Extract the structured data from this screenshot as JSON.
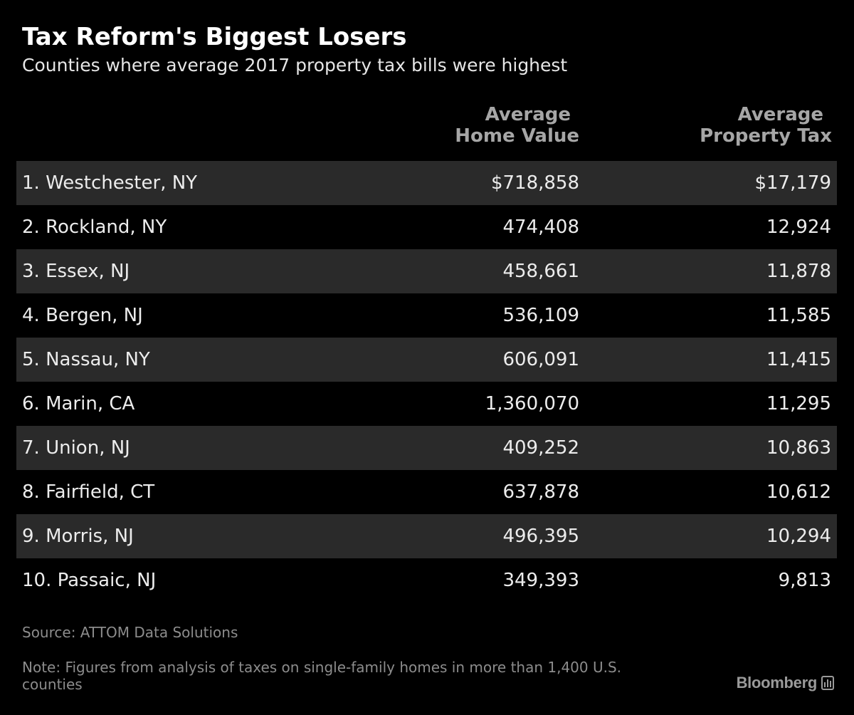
{
  "title": "Tax Reform's Biggest Losers",
  "subtitle": "Counties where average 2017 property tax bills were highest",
  "columns": {
    "home_value": {
      "line1": "Average",
      "line2": "Home Value"
    },
    "property_tax": {
      "line1": "Average",
      "line2": "Property Tax"
    }
  },
  "rows": [
    {
      "county": "1. Westchester, NY",
      "home_value": "$718,858",
      "property_tax": "$17,179"
    },
    {
      "county": "2. Rockland, NY",
      "home_value": "474,408",
      "property_tax": "12,924"
    },
    {
      "county": "3. Essex, NJ",
      "home_value": "458,661",
      "property_tax": "11,878"
    },
    {
      "county": "4. Bergen, NJ",
      "home_value": "536,109",
      "property_tax": "11,585"
    },
    {
      "county": "5. Nassau, NY",
      "home_value": "606,091",
      "property_tax": "11,415"
    },
    {
      "county": "6. Marin, CA",
      "home_value": "1,360,070",
      "property_tax": "11,295"
    },
    {
      "county": "7. Union, NJ",
      "home_value": "409,252",
      "property_tax": "10,863"
    },
    {
      "county": "8. Fairfield, CT",
      "home_value": "637,878",
      "property_tax": "10,612"
    },
    {
      "county": "9. Morris, NJ",
      "home_value": "496,395",
      "property_tax": "10,294"
    },
    {
      "county": "10. Passaic, NJ",
      "home_value": "349,393",
      "property_tax": "9,813"
    }
  ],
  "source": "Source: ATTOM Data Solutions",
  "note": "Note: Figures from analysis of taxes on single-family homes in more than 1,400 U.S. counties",
  "brand": {
    "name": "Bloomberg",
    "icon": "bloomberg-chart-icon"
  },
  "chart_data": {
    "type": "table",
    "title": "Tax Reform's Biggest Losers",
    "subtitle": "Counties where average 2017 property tax bills were highest",
    "columns": [
      "Average Home Value",
      "Average Property Tax"
    ],
    "categories": [
      "Westchester, NY",
      "Rockland, NY",
      "Essex, NJ",
      "Bergen, NJ",
      "Nassau, NY",
      "Marin, CA",
      "Union, NJ",
      "Fairfield, CT",
      "Morris, NJ",
      "Passaic, NJ"
    ],
    "series": [
      {
        "name": "Average Home Value",
        "values": [
          718858,
          474408,
          458661,
          536109,
          606091,
          1360070,
          409252,
          637878,
          496395,
          349393
        ]
      },
      {
        "name": "Average Property Tax",
        "values": [
          17179,
          12924,
          11878,
          11585,
          11415,
          11295,
          10863,
          10612,
          10294,
          9813
        ]
      }
    ],
    "colors": {
      "background": "#000000",
      "shaded_row": "#2a2a2a",
      "header_text": "#a6a6a6",
      "body_text": "#ececec",
      "footnote_text": "#8c8c8c"
    }
  }
}
